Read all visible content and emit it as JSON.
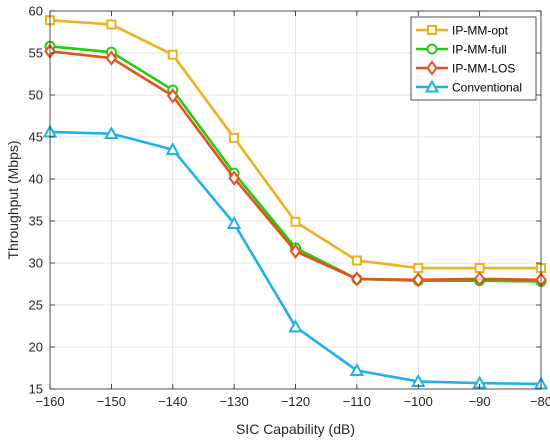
{
  "chart_data": {
    "type": "line",
    "title": "",
    "xlabel": "SIC Capability (dB)",
    "ylabel": "Throughput (Mbps)",
    "xlim": [
      -160,
      -80
    ],
    "ylim": [
      15,
      60
    ],
    "xticks": [
      -160,
      -150,
      -140,
      -130,
      -120,
      -110,
      -100,
      -90,
      -80
    ],
    "yticks": [
      15,
      20,
      25,
      30,
      35,
      40,
      45,
      50,
      55,
      60
    ],
    "xtick_labels": [
      "−160",
      "−150",
      "−140",
      "−130",
      "−120",
      "−110",
      "−100",
      "−90",
      "−80"
    ],
    "ytick_labels": [
      "15",
      "20",
      "25",
      "30",
      "35",
      "40",
      "45",
      "50",
      "55",
      "60"
    ],
    "grid": true,
    "legend_position": "top-right",
    "x": [
      -160,
      -150,
      -140,
      -130,
      -120,
      -110,
      -100,
      -90,
      -80
    ],
    "series": [
      {
        "name": "IP-MM-opt",
        "color": "#EDB120",
        "marker": "square",
        "values": [
          58.9,
          58.4,
          54.8,
          44.9,
          34.9,
          30.3,
          29.4,
          29.4,
          29.4
        ]
      },
      {
        "name": "IP-MM-full",
        "color": "#22CC11",
        "marker": "circle",
        "values": [
          55.8,
          55.1,
          50.6,
          40.7,
          31.8,
          28.1,
          27.9,
          27.9,
          27.8
        ]
      },
      {
        "name": "IP-MM-LOS",
        "color": "#E8501A",
        "marker": "diamond",
        "values": [
          55.2,
          54.4,
          49.9,
          40.1,
          31.4,
          28.1,
          28.0,
          28.1,
          28.0
        ]
      },
      {
        "name": "Conventional",
        "color": "#1FB0EA",
        "marker": "triangle",
        "values": [
          45.6,
          45.4,
          43.5,
          34.7,
          22.4,
          17.2,
          15.9,
          15.7,
          15.6
        ]
      }
    ]
  }
}
